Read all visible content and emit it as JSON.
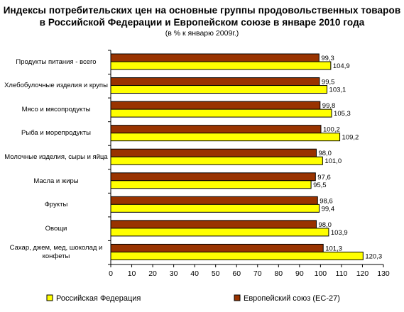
{
  "chart_data": {
    "type": "bar",
    "orientation": "horizontal",
    "title_lines": [
      "Индексы потребительских цен на основные группы продовольственных товаров",
      "в Российской Федерации и Европейском союзе в январе 2010 года"
    ],
    "subtitle": "(в % к январю 2009г.)",
    "categories": [
      "Продукты питания - всего",
      "Хлебобулочные изделия и крупы",
      "Мясо и мясопродукты",
      "Рыба и морепродукты",
      "Молочные изделия, сыры и яйца",
      "Масла и жиры",
      "Фрукты",
      "Овощи",
      "Сахар, джем, мед, шоколад и конфеты"
    ],
    "series": [
      {
        "name": "Европейский союз (ЕС-27)",
        "color": "#993300",
        "values": [
          99.3,
          99.5,
          99.8,
          100.2,
          98.0,
          97.6,
          98.6,
          98.0,
          101.3
        ],
        "labels": [
          "99,3",
          "99,5",
          "99,8",
          "100,2",
          "98,0",
          "97,6",
          "98,6",
          "98,0",
          "101,3"
        ]
      },
      {
        "name": "Российская Федерация",
        "color": "#ffff00",
        "values": [
          104.9,
          103.1,
          105.3,
          109.2,
          101.0,
          95.5,
          99.4,
          103.9,
          120.3
        ],
        "labels": [
          "104,9",
          "103,1",
          "105,3",
          "109,2",
          "101,0",
          "95,5",
          "99,4",
          "103,9",
          "120,3"
        ]
      }
    ],
    "xlim": [
      0,
      130
    ],
    "xticks": [
      0,
      10,
      20,
      30,
      40,
      50,
      60,
      70,
      80,
      90,
      100,
      110,
      120,
      130
    ],
    "legend": [
      {
        "name": "Российская Федерация",
        "color": "#ffff00"
      },
      {
        "name": "Европейский союз (ЕС-27)",
        "color": "#993300"
      }
    ],
    "legend_position": "bottom",
    "grid": false,
    "bar_border_color": "#000000",
    "axis_color": "#000000"
  }
}
